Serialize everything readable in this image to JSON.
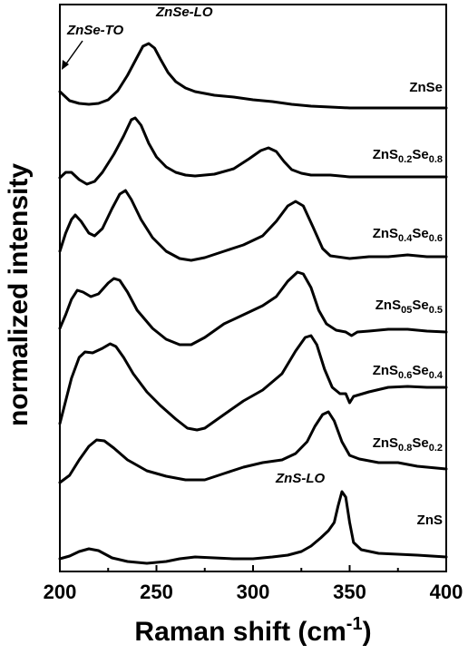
{
  "chart_data": {
    "type": "line",
    "xlabel": "Raman shift (cm",
    "xlabel_sup": "-1",
    "xlabel_end": ")",
    "ylabel": "normalized intensity",
    "xlim": [
      200,
      400
    ],
    "x_ticks": [
      "200",
      "250",
      "300",
      "350",
      "400"
    ],
    "y_ticks": false,
    "grid": false,
    "series": [
      {
        "label_parts": [
          [
            "ZnSe",
            ""
          ]
        ],
        "points": [
          [
            200,
            0.02
          ],
          [
            202,
            -0.02
          ],
          [
            205,
            -0.08
          ],
          [
            210,
            -0.11
          ],
          [
            215,
            -0.12
          ],
          [
            220,
            -0.11
          ],
          [
            225,
            -0.07
          ],
          [
            230,
            0.03
          ],
          [
            235,
            0.2
          ],
          [
            240,
            0.4
          ],
          [
            243,
            0.52
          ],
          [
            246,
            0.55
          ],
          [
            249,
            0.5
          ],
          [
            252,
            0.38
          ],
          [
            256,
            0.23
          ],
          [
            260,
            0.13
          ],
          [
            265,
            0.06
          ],
          [
            270,
            0.02
          ],
          [
            275,
            0.0
          ],
          [
            280,
            -0.02
          ],
          [
            290,
            -0.04
          ],
          [
            300,
            -0.07
          ],
          [
            310,
            -0.09
          ],
          [
            320,
            -0.12
          ],
          [
            330,
            -0.14
          ],
          [
            340,
            -0.15
          ],
          [
            350,
            -0.16
          ],
          [
            360,
            -0.16
          ],
          [
            380,
            -0.16
          ],
          [
            400,
            -0.16
          ]
        ]
      },
      {
        "label_parts": [
          [
            "ZnS",
            ""
          ],
          [
            "0.2",
            "sub"
          ],
          [
            "Se",
            ""
          ],
          [
            "0.8",
            "sub"
          ]
        ],
        "points": [
          [
            200,
            -0.06
          ],
          [
            203,
            0.0
          ],
          [
            206,
            0.0
          ],
          [
            210,
            -0.08
          ],
          [
            214,
            -0.13
          ],
          [
            218,
            -0.1
          ],
          [
            222,
            0.0
          ],
          [
            228,
            0.2
          ],
          [
            233,
            0.4
          ],
          [
            237,
            0.58
          ],
          [
            239,
            0.6
          ],
          [
            242,
            0.52
          ],
          [
            246,
            0.32
          ],
          [
            250,
            0.17
          ],
          [
            255,
            0.06
          ],
          [
            260,
            0.0
          ],
          [
            265,
            -0.03
          ],
          [
            270,
            -0.04
          ],
          [
            280,
            -0.02
          ],
          [
            290,
            0.04
          ],
          [
            298,
            0.15
          ],
          [
            304,
            0.24
          ],
          [
            308,
            0.27
          ],
          [
            312,
            0.23
          ],
          [
            316,
            0.12
          ],
          [
            320,
            0.03
          ],
          [
            325,
            -0.01
          ],
          [
            330,
            -0.03
          ],
          [
            340,
            -0.03
          ],
          [
            350,
            -0.05
          ],
          [
            360,
            -0.05
          ],
          [
            380,
            -0.05
          ],
          [
            400,
            -0.05
          ]
        ]
      },
      {
        "label_parts": [
          [
            "ZnS",
            ""
          ],
          [
            "0.4",
            "sub"
          ],
          [
            "Se",
            ""
          ],
          [
            "0.6",
            "sub"
          ]
        ],
        "points": [
          [
            200,
            -0.05
          ],
          [
            203,
            0.15
          ],
          [
            206,
            0.3
          ],
          [
            208,
            0.35
          ],
          [
            211,
            0.28
          ],
          [
            215,
            0.15
          ],
          [
            218,
            0.12
          ],
          [
            222,
            0.2
          ],
          [
            227,
            0.42
          ],
          [
            231,
            0.58
          ],
          [
            234,
            0.62
          ],
          [
            237,
            0.52
          ],
          [
            242,
            0.3
          ],
          [
            248,
            0.1
          ],
          [
            255,
            -0.05
          ],
          [
            262,
            -0.13
          ],
          [
            268,
            -0.15
          ],
          [
            275,
            -0.12
          ],
          [
            285,
            -0.05
          ],
          [
            295,
            0.02
          ],
          [
            305,
            0.12
          ],
          [
            312,
            0.28
          ],
          [
            318,
            0.45
          ],
          [
            322,
            0.5
          ],
          [
            326,
            0.45
          ],
          [
            331,
            0.22
          ],
          [
            336,
            -0.02
          ],
          [
            340,
            -0.1
          ],
          [
            350,
            -0.13
          ],
          [
            360,
            -0.11
          ],
          [
            370,
            -0.11
          ],
          [
            380,
            -0.09
          ],
          [
            390,
            -0.11
          ],
          [
            400,
            -0.11
          ]
        ]
      },
      {
        "label_parts": [
          [
            "ZnS",
            ""
          ],
          [
            "05",
            "sub"
          ],
          [
            "Se",
            ""
          ],
          [
            "0.5",
            "sub"
          ]
        ],
        "points": [
          [
            200,
            -0.1
          ],
          [
            203,
            0.05
          ],
          [
            206,
            0.22
          ],
          [
            209,
            0.32
          ],
          [
            212,
            0.3
          ],
          [
            216,
            0.25
          ],
          [
            220,
            0.28
          ],
          [
            225,
            0.4
          ],
          [
            228,
            0.45
          ],
          [
            231,
            0.43
          ],
          [
            235,
            0.3
          ],
          [
            240,
            0.1
          ],
          [
            248,
            -0.1
          ],
          [
            255,
            -0.22
          ],
          [
            262,
            -0.28
          ],
          [
            268,
            -0.28
          ],
          [
            275,
            -0.2
          ],
          [
            285,
            -0.05
          ],
          [
            295,
            0.05
          ],
          [
            305,
            0.15
          ],
          [
            312,
            0.25
          ],
          [
            318,
            0.42
          ],
          [
            323,
            0.52
          ],
          [
            326,
            0.5
          ],
          [
            330,
            0.35
          ],
          [
            334,
            0.1
          ],
          [
            338,
            -0.05
          ],
          [
            343,
            -0.12
          ],
          [
            348,
            -0.14
          ],
          [
            351,
            -0.18
          ],
          [
            354,
            -0.14
          ],
          [
            360,
            -0.13
          ],
          [
            370,
            -0.11
          ],
          [
            380,
            -0.11
          ],
          [
            390,
            -0.13
          ],
          [
            400,
            -0.14
          ]
        ]
      },
      {
        "label_parts": [
          [
            "ZnS",
            ""
          ],
          [
            "0.6",
            "sub"
          ],
          [
            "Se",
            ""
          ],
          [
            "0.4",
            "sub"
          ]
        ],
        "points": [
          [
            200,
            -0.35
          ],
          [
            203,
            -0.1
          ],
          [
            206,
            0.15
          ],
          [
            210,
            0.38
          ],
          [
            213,
            0.44
          ],
          [
            217,
            0.43
          ],
          [
            222,
            0.48
          ],
          [
            226,
            0.53
          ],
          [
            229,
            0.5
          ],
          [
            233,
            0.38
          ],
          [
            238,
            0.2
          ],
          [
            245,
            0.0
          ],
          [
            252,
            -0.15
          ],
          [
            260,
            -0.3
          ],
          [
            266,
            -0.4
          ],
          [
            271,
            -0.42
          ],
          [
            275,
            -0.4
          ],
          [
            285,
            -0.25
          ],
          [
            295,
            -0.1
          ],
          [
            305,
            0.02
          ],
          [
            315,
            0.2
          ],
          [
            322,
            0.45
          ],
          [
            327,
            0.6
          ],
          [
            330,
            0.62
          ],
          [
            333,
            0.52
          ],
          [
            337,
            0.25
          ],
          [
            341,
            0.05
          ],
          [
            345,
            -0.02
          ],
          [
            348,
            -0.02
          ],
          [
            350,
            -0.12
          ],
          [
            352,
            -0.05
          ],
          [
            360,
            0.0
          ],
          [
            370,
            0.05
          ],
          [
            380,
            0.06
          ],
          [
            390,
            0.05
          ],
          [
            400,
            0.05
          ]
        ]
      },
      {
        "label_parts": [
          [
            "ZnS",
            ""
          ],
          [
            "0.8",
            "sub"
          ],
          [
            "Se",
            ""
          ],
          [
            "0.2",
            "sub"
          ]
        ],
        "points": [
          [
            200,
            -0.2
          ],
          [
            205,
            -0.12
          ],
          [
            210,
            0.05
          ],
          [
            215,
            0.2
          ],
          [
            219,
            0.27
          ],
          [
            223,
            0.26
          ],
          [
            228,
            0.18
          ],
          [
            235,
            0.05
          ],
          [
            245,
            -0.07
          ],
          [
            255,
            -0.13
          ],
          [
            265,
            -0.17
          ],
          [
            275,
            -0.17
          ],
          [
            285,
            -0.1
          ],
          [
            295,
            -0.03
          ],
          [
            305,
            0.02
          ],
          [
            315,
            0.05
          ],
          [
            322,
            0.12
          ],
          [
            328,
            0.25
          ],
          [
            332,
            0.42
          ],
          [
            336,
            0.55
          ],
          [
            339,
            0.58
          ],
          [
            342,
            0.48
          ],
          [
            346,
            0.25
          ],
          [
            350,
            0.1
          ],
          [
            355,
            0.06
          ],
          [
            365,
            0.02
          ],
          [
            375,
            0.02
          ],
          [
            385,
            -0.02
          ],
          [
            400,
            -0.05
          ]
        ]
      },
      {
        "label_parts": [
          [
            "ZnS",
            ""
          ]
        ],
        "points": [
          [
            200,
            -0.18
          ],
          [
            205,
            -0.15
          ],
          [
            210,
            -0.1
          ],
          [
            215,
            -0.07
          ],
          [
            220,
            -0.09
          ],
          [
            227,
            -0.17
          ],
          [
            235,
            -0.21
          ],
          [
            245,
            -0.23
          ],
          [
            255,
            -0.21
          ],
          [
            262,
            -0.18
          ],
          [
            270,
            -0.16
          ],
          [
            280,
            -0.17
          ],
          [
            290,
            -0.18
          ],
          [
            300,
            -0.18
          ],
          [
            310,
            -0.16
          ],
          [
            318,
            -0.14
          ],
          [
            325,
            -0.1
          ],
          [
            330,
            -0.04
          ],
          [
            335,
            0.05
          ],
          [
            339,
            0.13
          ],
          [
            342,
            0.22
          ],
          [
            344,
            0.4
          ],
          [
            346,
            0.56
          ],
          [
            348,
            0.5
          ],
          [
            350,
            0.22
          ],
          [
            352,
            0.0
          ],
          [
            356,
            -0.08
          ],
          [
            365,
            -0.12
          ],
          [
            375,
            -0.13
          ],
          [
            385,
            -0.14
          ],
          [
            400,
            -0.16
          ]
        ]
      }
    ],
    "annotations": {
      "znse_to": "ZnSe-TO",
      "znse_lo": "ZnSe-LO",
      "zns_lo": "ZnS-LO"
    }
  }
}
